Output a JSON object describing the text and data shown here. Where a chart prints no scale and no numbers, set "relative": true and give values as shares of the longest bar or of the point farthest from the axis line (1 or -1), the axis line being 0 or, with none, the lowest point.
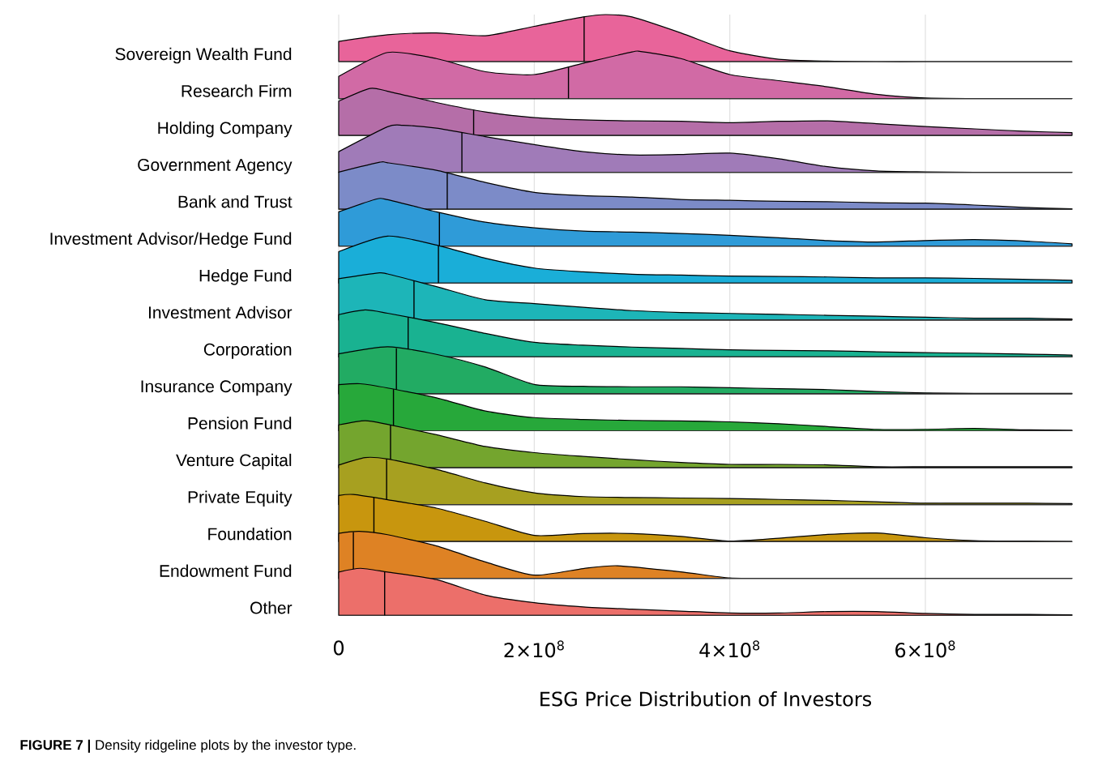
{
  "chart_data": [
    {
      "type": "area",
      "relative": true,
      "ylabel": "Sovereign Wealth Fund",
      "color": "#e8649a",
      "x": [
        0,
        50000000,
        100000000,
        150000000,
        200000000,
        250000000,
        273000000,
        300000000,
        350000000,
        400000000,
        450000000,
        500000000,
        550000000,
        600000000,
        650000000,
        700000000,
        750000000
      ],
      "values": [
        0.43,
        0.57,
        0.61,
        0.55,
        0.75,
        0.95,
        1,
        0.95,
        0.61,
        0.23,
        0.05,
        0.01,
        0,
        0,
        0,
        0,
        0
      ],
      "ref_lines": [
        {
          "axis": "x",
          "value": 251000000
        }
      ],
      "xlim": [
        0,
        750000000
      ]
    },
    {
      "type": "area",
      "relative": true,
      "ylabel": "Research Firm",
      "color": "#d16aa5",
      "x": [
        0,
        50000000,
        100000000,
        150000000,
        200000000,
        250000000,
        300000000,
        309000000,
        350000000,
        400000000,
        450000000,
        500000000,
        550000000,
        600000000,
        650000000,
        700000000,
        750000000
      ],
      "values": [
        0.47,
        0.98,
        0.85,
        0.57,
        0.51,
        0.75,
        0.99,
        1,
        0.85,
        0.51,
        0.38,
        0.25,
        0.09,
        0.01,
        0,
        0,
        0
      ],
      "ref_lines": [
        {
          "axis": "x",
          "value": 235000000
        }
      ],
      "xlim": [
        0,
        750000000
      ]
    },
    {
      "type": "area",
      "relative": true,
      "ylabel": "Holding Company",
      "color": "#b56ea8",
      "x": [
        0,
        32000000,
        50000000,
        100000000,
        150000000,
        200000000,
        250000000,
        300000000,
        350000000,
        400000000,
        450000000,
        500000000,
        550000000,
        600000000,
        650000000,
        700000000,
        750000000
      ],
      "values": [
        0.73,
        1,
        0.94,
        0.7,
        0.5,
        0.38,
        0.33,
        0.31,
        0.3,
        0.27,
        0.3,
        0.31,
        0.25,
        0.19,
        0.14,
        0.09,
        0.06
      ],
      "ref_lines": [
        {
          "axis": "x",
          "value": 138000000
        }
      ],
      "xlim": [
        0,
        750000000
      ]
    },
    {
      "type": "area",
      "relative": true,
      "ylabel": "Government Agency",
      "color": "#a07bb8",
      "x": [
        0,
        50000000,
        66000000,
        100000000,
        150000000,
        200000000,
        250000000,
        300000000,
        350000000,
        400000000,
        450000000,
        500000000,
        550000000,
        600000000,
        650000000,
        700000000,
        750000000
      ],
      "values": [
        0.44,
        0.97,
        1,
        0.94,
        0.76,
        0.59,
        0.44,
        0.37,
        0.38,
        0.41,
        0.29,
        0.12,
        0.03,
        0.01,
        0,
        0,
        0
      ],
      "ref_lines": [
        {
          "axis": "x",
          "value": 126000000
        }
      ],
      "xlim": [
        0,
        750000000
      ]
    },
    {
      "type": "area",
      "relative": true,
      "ylabel": "Bank and Trust",
      "color": "#7c8bc8",
      "x": [
        0,
        42000000,
        50000000,
        100000000,
        150000000,
        200000000,
        250000000,
        300000000,
        350000000,
        400000000,
        450000000,
        500000000,
        550000000,
        600000000,
        650000000,
        700000000,
        750000000
      ],
      "values": [
        0.79,
        1,
        0.99,
        0.83,
        0.57,
        0.36,
        0.29,
        0.26,
        0.21,
        0.19,
        0.17,
        0.16,
        0.14,
        0.13,
        0.09,
        0.04,
        0.01
      ],
      "ref_lines": [
        {
          "axis": "x",
          "value": 111000000
        }
      ],
      "xlim": [
        0,
        750000000
      ]
    },
    {
      "type": "area",
      "relative": true,
      "ylabel": "Investment Advisor/Hedge Fund",
      "color": "#2f9bd8",
      "x": [
        0,
        38000000,
        50000000,
        100000000,
        150000000,
        200000000,
        250000000,
        300000000,
        350000000,
        400000000,
        450000000,
        500000000,
        550000000,
        600000000,
        650000000,
        700000000,
        750000000
      ],
      "values": [
        0.73,
        1,
        0.99,
        0.73,
        0.51,
        0.39,
        0.32,
        0.3,
        0.27,
        0.23,
        0.18,
        0.12,
        0.09,
        0.12,
        0.14,
        0.11,
        0.05
      ],
      "ref_lines": [
        {
          "axis": "x",
          "value": 103000000
        }
      ],
      "xlim": [
        0,
        750000000
      ]
    },
    {
      "type": "area",
      "relative": true,
      "ylabel": "Hedge Fund",
      "color": "#1aaed8",
      "x": [
        0,
        50000000,
        100000000,
        150000000,
        200000000,
        250000000,
        300000000,
        350000000,
        400000000,
        450000000,
        500000000,
        550000000,
        600000000,
        650000000,
        700000000,
        750000000
      ],
      "values": [
        0.67,
        1,
        0.81,
        0.53,
        0.32,
        0.24,
        0.19,
        0.17,
        0.15,
        0.14,
        0.13,
        0.11,
        0.11,
        0.1,
        0.08,
        0.06
      ],
      "ref_lines": [
        {
          "axis": "x",
          "value": 102000000
        }
      ],
      "xlim": [
        0,
        750000000
      ]
    },
    {
      "type": "area",
      "relative": true,
      "ylabel": "Investment Advisor",
      "color": "#1db5b8",
      "x": [
        0,
        40000000,
        50000000,
        100000000,
        150000000,
        200000000,
        250000000,
        300000000,
        350000000,
        400000000,
        450000000,
        500000000,
        550000000,
        600000000,
        650000000,
        700000000,
        750000000
      ],
      "values": [
        0.88,
        1,
        0.98,
        0.71,
        0.43,
        0.35,
        0.27,
        0.2,
        0.16,
        0.14,
        0.12,
        0.1,
        0.08,
        0.06,
        0.04,
        0.04,
        0.02
      ],
      "ref_lines": [
        {
          "axis": "x",
          "value": 77000000
        }
      ],
      "xlim": [
        0,
        750000000
      ]
    },
    {
      "type": "area",
      "relative": true,
      "ylabel": "Corporation",
      "color": "#19b291",
      "x": [
        0,
        27000000,
        50000000,
        100000000,
        150000000,
        200000000,
        250000000,
        300000000,
        350000000,
        400000000,
        450000000,
        500000000,
        550000000,
        600000000,
        650000000,
        700000000,
        750000000
      ],
      "values": [
        0.9,
        1,
        0.93,
        0.73,
        0.5,
        0.31,
        0.25,
        0.21,
        0.18,
        0.15,
        0.14,
        0.13,
        0.11,
        0.09,
        0.08,
        0.06,
        0.04
      ],
      "ref_lines": [
        {
          "axis": "x",
          "value": 71000000
        }
      ],
      "xlim": [
        0,
        750000000
      ]
    },
    {
      "type": "area",
      "relative": true,
      "ylabel": "Insurance Company",
      "color": "#22ab63",
      "x": [
        0,
        50000000,
        100000000,
        150000000,
        200000000,
        250000000,
        300000000,
        350000000,
        400000000,
        450000000,
        500000000,
        550000000,
        600000000,
        650000000,
        700000000,
        750000000
      ],
      "values": [
        0.85,
        1,
        0.84,
        0.57,
        0.2,
        0.16,
        0.15,
        0.15,
        0.13,
        0.11,
        0.09,
        0.05,
        0.02,
        0.01,
        0.01,
        0.01
      ],
      "ref_lines": [
        {
          "axis": "x",
          "value": 59000000
        }
      ],
      "xlim": [
        0,
        750000000
      ]
    },
    {
      "type": "area",
      "relative": true,
      "ylabel": "Pension Fund",
      "color": "#27a83a",
      "x": [
        0,
        22000000,
        50000000,
        100000000,
        150000000,
        200000000,
        250000000,
        300000000,
        350000000,
        400000000,
        450000000,
        500000000,
        550000000,
        600000000,
        650000000,
        700000000,
        750000000
      ],
      "values": [
        0.98,
        1,
        0.91,
        0.7,
        0.42,
        0.28,
        0.24,
        0.22,
        0.21,
        0.19,
        0.15,
        0.09,
        0.03,
        0.03,
        0.05,
        0.02,
        0.01
      ],
      "ref_lines": [
        {
          "axis": "x",
          "value": 56000000
        }
      ],
      "xlim": [
        0,
        750000000
      ]
    },
    {
      "type": "area",
      "relative": true,
      "ylabel": "Venture Capital",
      "color": "#74a52e",
      "x": [
        0,
        27000000,
        50000000,
        100000000,
        150000000,
        200000000,
        250000000,
        300000000,
        350000000,
        400000000,
        450000000,
        500000000,
        550000000,
        600000000,
        650000000,
        700000000,
        750000000
      ],
      "values": [
        0.91,
        1,
        0.92,
        0.7,
        0.45,
        0.32,
        0.24,
        0.17,
        0.11,
        0.07,
        0.07,
        0.06,
        0.02,
        0.02,
        0.02,
        0.02,
        0.02
      ],
      "ref_lines": [
        {
          "axis": "x",
          "value": 53000000
        }
      ],
      "xlim": [
        0,
        750000000
      ]
    },
    {
      "type": "area",
      "relative": true,
      "ylabel": "Private Equity",
      "color": "#a7a020",
      "x": [
        0,
        27000000,
        50000000,
        100000000,
        150000000,
        200000000,
        250000000,
        300000000,
        350000000,
        400000000,
        450000000,
        500000000,
        550000000,
        600000000,
        650000000,
        700000000,
        750000000
      ],
      "values": [
        0.84,
        1,
        0.97,
        0.75,
        0.46,
        0.25,
        0.17,
        0.15,
        0.14,
        0.13,
        0.11,
        0.09,
        0.06,
        0.03,
        0.03,
        0.03,
        0.02
      ],
      "ref_lines": [
        {
          "axis": "x",
          "value": 49000000
        }
      ],
      "xlim": [
        0,
        750000000
      ]
    },
    {
      "type": "area",
      "relative": true,
      "ylabel": "Foundation",
      "color": "#c8960e",
      "x": [
        0,
        15000000,
        50000000,
        100000000,
        150000000,
        200000000,
        250000000,
        300000000,
        350000000,
        400000000,
        450000000,
        500000000,
        550000000,
        600000000,
        650000000,
        700000000,
        750000000
      ],
      "values": [
        0.98,
        1,
        0.89,
        0.71,
        0.43,
        0.13,
        0.17,
        0.17,
        0.11,
        0.01,
        0.07,
        0.15,
        0.18,
        0.08,
        0.02,
        0.01,
        0
      ],
      "ref_lines": [
        {
          "axis": "x",
          "value": 36000000
        }
      ],
      "xlim": [
        0,
        750000000
      ]
    },
    {
      "type": "area",
      "relative": true,
      "ylabel": "Endowment Fund",
      "color": "#de8224",
      "x": [
        0,
        21000000,
        50000000,
        100000000,
        150000000,
        200000000,
        250000000,
        285000000,
        350000000,
        400000000,
        450000000,
        500000000,
        550000000,
        600000000,
        650000000,
        700000000,
        750000000
      ],
      "values": [
        0.96,
        1,
        0.93,
        0.69,
        0.35,
        0.07,
        0.21,
        0.27,
        0.14,
        0.01,
        0,
        0,
        0,
        0,
        0,
        0,
        0
      ],
      "ref_lines": [
        {
          "axis": "x",
          "value": 15000000
        }
      ],
      "xlim": [
        0,
        750000000
      ]
    },
    {
      "type": "area",
      "relative": true,
      "ylabel": "Other",
      "color": "#ec6f6a",
      "x": [
        0,
        22000000,
        50000000,
        100000000,
        150000000,
        200000000,
        250000000,
        300000000,
        350000000,
        400000000,
        450000000,
        500000000,
        550000000,
        600000000,
        650000000,
        700000000,
        750000000
      ],
      "values": [
        0.92,
        1,
        0.92,
        0.76,
        0.43,
        0.27,
        0.18,
        0.13,
        0.09,
        0.05,
        0.05,
        0.08,
        0.08,
        0.04,
        0.02,
        0.02,
        0.01
      ],
      "ref_lines": [
        {
          "axis": "x",
          "value": 47000000
        }
      ],
      "xlim": [
        0,
        750000000
      ],
      "xticks": [
        0,
        {
          "value": 200000000,
          "label": "2×10$^{8}$"
        },
        {
          "value": 400000000,
          "label": "4×10$^{8}$"
        },
        {
          "value": 600000000,
          "label": "6×10$^{8}$"
        }
      ],
      "grid": "x",
      "tick_labels": "x",
      "xlabel": "ESG Price Distribution of Investors",
      "annotations": [
        "**FIGURE 7 |** Density ridgeline plots by the investor type."
      ]
    }
  ]
}
